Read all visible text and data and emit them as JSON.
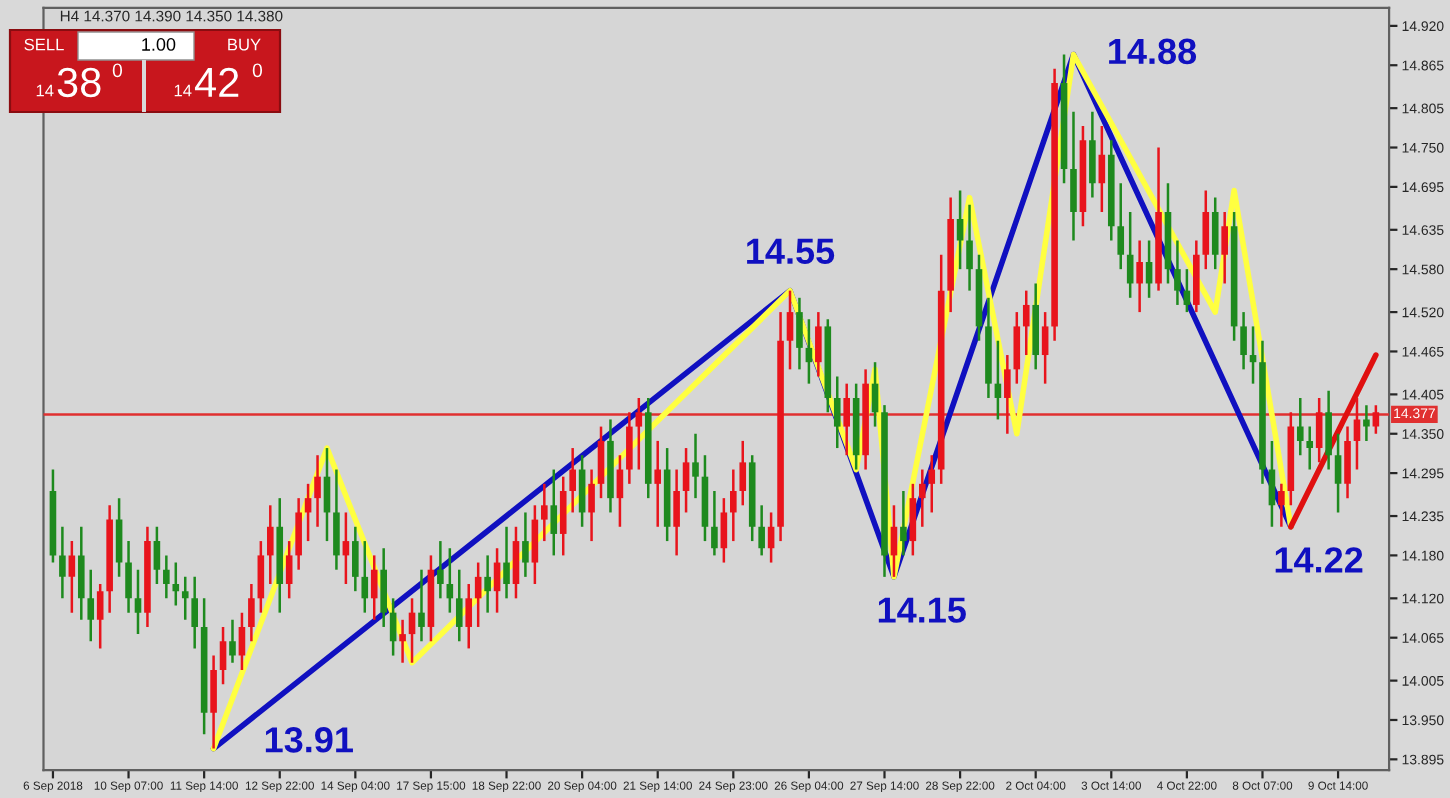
{
  "chart_data": {
    "type": "candlestick",
    "title": "H4 14.370 14.390 14.350 14.380",
    "annotations": [
      "SELL",
      "1.00",
      "BUY",
      "14",
      "38",
      "0",
      "14",
      "42",
      "0"
    ],
    "categories": [
      "6 Sep 2018",
      null,
      null,
      null,
      null,
      null,
      null,
      null,
      "10 Sep 07:00",
      null,
      null,
      null,
      null,
      null,
      null,
      null,
      "11 Sep 14:00",
      null,
      null,
      null,
      null,
      null,
      null,
      null,
      "12 Sep 22:00",
      null,
      null,
      null,
      null,
      null,
      null,
      null,
      "14 Sep 04:00",
      null,
      null,
      null,
      null,
      null,
      null,
      null,
      "17 Sep 15:00",
      null,
      null,
      null,
      null,
      null,
      null,
      null,
      "18 Sep 22:00",
      null,
      null,
      null,
      null,
      null,
      null,
      null,
      "20 Sep 04:00",
      null,
      null,
      null,
      null,
      null,
      null,
      null,
      "21 Sep 14:00",
      null,
      null,
      null,
      null,
      null,
      null,
      null,
      "24 Sep 23:00",
      null,
      null,
      null,
      null,
      null,
      null,
      null,
      "26 Sep 04:00",
      null,
      null,
      null,
      null,
      null,
      null,
      null,
      "27 Sep 14:00",
      null,
      null,
      null,
      null,
      null,
      null,
      null,
      "28 Sep 22:00",
      null,
      null,
      null,
      null,
      null,
      null,
      null,
      "2 Oct 04:00",
      null,
      null,
      null,
      null,
      null,
      null,
      null,
      "3 Oct 14:00",
      null,
      null,
      null,
      null,
      null,
      null,
      null,
      "4 Oct 22:00",
      null,
      null,
      null,
      null,
      null,
      null,
      null,
      "8 Oct 07:00",
      null,
      null,
      null,
      null,
      null,
      null,
      null,
      "9 Oct 14:00",
      null,
      null,
      null,
      null
    ],
    "ohlc": [
      [
        14.27,
        14.3,
        14.17,
        14.18
      ],
      [
        14.18,
        14.22,
        14.12,
        14.15
      ],
      [
        14.15,
        14.2,
        14.1,
        14.18
      ],
      [
        14.18,
        14.22,
        14.09,
        14.12
      ],
      [
        14.12,
        14.16,
        14.06,
        14.09
      ],
      [
        14.09,
        14.14,
        14.05,
        14.13
      ],
      [
        14.13,
        14.25,
        14.1,
        14.23
      ],
      [
        14.23,
        14.26,
        14.15,
        14.17
      ],
      [
        14.17,
        14.2,
        14.1,
        14.12
      ],
      [
        14.12,
        14.16,
        14.07,
        14.1
      ],
      [
        14.1,
        14.22,
        14.08,
        14.2
      ],
      [
        14.2,
        14.22,
        14.14,
        14.16
      ],
      [
        14.16,
        14.18,
        14.12,
        14.14
      ],
      [
        14.14,
        14.17,
        14.11,
        14.13
      ],
      [
        14.13,
        14.15,
        14.09,
        14.12
      ],
      [
        14.12,
        14.15,
        14.05,
        14.08
      ],
      [
        14.08,
        14.12,
        13.93,
        13.96
      ],
      [
        13.96,
        14.04,
        13.91,
        14.02
      ],
      [
        14.02,
        14.08,
        14.0,
        14.06
      ],
      [
        14.06,
        14.09,
        14.03,
        14.04
      ],
      [
        14.04,
        14.1,
        14.02,
        14.08
      ],
      [
        14.08,
        14.14,
        14.06,
        14.12
      ],
      [
        14.12,
        14.2,
        14.1,
        14.18
      ],
      [
        14.18,
        14.25,
        14.14,
        14.22
      ],
      [
        14.22,
        14.26,
        14.1,
        14.14
      ],
      [
        14.14,
        14.2,
        14.12,
        14.18
      ],
      [
        14.18,
        14.26,
        14.16,
        14.24
      ],
      [
        14.24,
        14.28,
        14.2,
        14.26
      ],
      [
        14.26,
        14.32,
        14.22,
        14.29
      ],
      [
        14.29,
        14.33,
        14.2,
        14.24
      ],
      [
        14.24,
        14.3,
        14.16,
        14.18
      ],
      [
        14.18,
        14.24,
        14.14,
        14.2
      ],
      [
        14.2,
        14.22,
        14.13,
        14.15
      ],
      [
        14.15,
        14.2,
        14.1,
        14.12
      ],
      [
        14.12,
        14.18,
        14.09,
        14.16
      ],
      [
        14.16,
        14.19,
        14.08,
        14.1
      ],
      [
        14.1,
        14.12,
        14.04,
        14.06
      ],
      [
        14.06,
        14.09,
        14.03,
        14.07
      ],
      [
        14.07,
        14.12,
        14.03,
        14.1
      ],
      [
        14.1,
        14.16,
        14.06,
        14.08
      ],
      [
        14.08,
        14.18,
        14.06,
        14.16
      ],
      [
        14.16,
        14.2,
        14.12,
        14.14
      ],
      [
        14.14,
        14.19,
        14.1,
        14.12
      ],
      [
        14.12,
        14.16,
        14.06,
        14.08
      ],
      [
        14.08,
        14.14,
        14.05,
        14.12
      ],
      [
        14.12,
        14.17,
        14.08,
        14.15
      ],
      [
        14.15,
        14.18,
        14.1,
        14.13
      ],
      [
        14.13,
        14.19,
        14.1,
        14.17
      ],
      [
        14.17,
        14.22,
        14.12,
        14.14
      ],
      [
        14.14,
        14.22,
        14.12,
        14.2
      ],
      [
        14.2,
        14.24,
        14.15,
        14.17
      ],
      [
        14.17,
        14.25,
        14.14,
        14.23
      ],
      [
        14.23,
        14.28,
        14.2,
        14.25
      ],
      [
        14.25,
        14.3,
        14.18,
        14.21
      ],
      [
        14.21,
        14.29,
        14.18,
        14.27
      ],
      [
        14.27,
        14.33,
        14.24,
        14.3
      ],
      [
        14.3,
        14.32,
        14.22,
        14.24
      ],
      [
        14.24,
        14.3,
        14.2,
        14.28
      ],
      [
        14.28,
        14.36,
        14.26,
        14.34
      ],
      [
        14.34,
        14.37,
        14.24,
        14.26
      ],
      [
        14.26,
        14.32,
        14.22,
        14.3
      ],
      [
        14.3,
        14.38,
        14.28,
        14.36
      ],
      [
        14.36,
        14.4,
        14.3,
        14.38
      ],
      [
        14.38,
        14.4,
        14.26,
        14.28
      ],
      [
        14.28,
        14.34,
        14.22,
        14.3
      ],
      [
        14.3,
        14.33,
        14.2,
        14.22
      ],
      [
        14.22,
        14.3,
        14.18,
        14.27
      ],
      [
        14.27,
        14.33,
        14.24,
        14.31
      ],
      [
        14.31,
        14.35,
        14.26,
        14.29
      ],
      [
        14.29,
        14.32,
        14.2,
        14.22
      ],
      [
        14.22,
        14.27,
        14.18,
        14.19
      ],
      [
        14.19,
        14.26,
        14.17,
        14.24
      ],
      [
        14.24,
        14.3,
        14.2,
        14.27
      ],
      [
        14.27,
        14.34,
        14.25,
        14.31
      ],
      [
        14.31,
        14.32,
        14.2,
        14.22
      ],
      [
        14.22,
        14.25,
        14.18,
        14.19
      ],
      [
        14.19,
        14.24,
        14.17,
        14.22
      ],
      [
        14.22,
        14.52,
        14.2,
        14.48
      ],
      [
        14.48,
        14.55,
        14.44,
        14.52
      ],
      [
        14.52,
        14.54,
        14.44,
        14.47
      ],
      [
        14.47,
        14.51,
        14.42,
        14.45
      ],
      [
        14.45,
        14.52,
        14.43,
        14.5
      ],
      [
        14.5,
        14.51,
        14.38,
        14.4
      ],
      [
        14.4,
        14.43,
        14.33,
        14.36
      ],
      [
        14.36,
        14.42,
        14.32,
        14.4
      ],
      [
        14.4,
        14.42,
        14.3,
        14.32
      ],
      [
        14.32,
        14.44,
        14.3,
        14.42
      ],
      [
        14.42,
        14.45,
        14.36,
        14.38
      ],
      [
        14.38,
        14.39,
        14.15,
        14.18
      ],
      [
        14.18,
        14.25,
        14.15,
        14.22
      ],
      [
        14.22,
        14.27,
        14.18,
        14.2
      ],
      [
        14.2,
        14.28,
        14.18,
        14.26
      ],
      [
        14.26,
        14.3,
        14.22,
        14.28
      ],
      [
        14.28,
        14.32,
        14.24,
        14.3
      ],
      [
        14.3,
        14.6,
        14.28,
        14.55
      ],
      [
        14.55,
        14.68,
        14.52,
        14.65
      ],
      [
        14.65,
        14.69,
        14.58,
        14.62
      ],
      [
        14.62,
        14.67,
        14.55,
        14.58
      ],
      [
        14.58,
        14.6,
        14.48,
        14.5
      ],
      [
        14.5,
        14.54,
        14.4,
        14.42
      ],
      [
        14.42,
        14.48,
        14.37,
        14.4
      ],
      [
        14.4,
        14.46,
        14.35,
        14.44
      ],
      [
        14.44,
        14.52,
        14.42,
        14.5
      ],
      [
        14.5,
        14.55,
        14.46,
        14.53
      ],
      [
        14.53,
        14.56,
        14.44,
        14.46
      ],
      [
        14.46,
        14.52,
        14.42,
        14.5
      ],
      [
        14.5,
        14.86,
        14.48,
        14.84
      ],
      [
        14.84,
        14.88,
        14.7,
        14.72
      ],
      [
        14.72,
        14.8,
        14.62,
        14.66
      ],
      [
        14.66,
        14.78,
        14.64,
        14.76
      ],
      [
        14.76,
        14.8,
        14.68,
        14.7
      ],
      [
        14.7,
        14.78,
        14.66,
        14.74
      ],
      [
        14.74,
        14.76,
        14.62,
        14.64
      ],
      [
        14.64,
        14.7,
        14.58,
        14.6
      ],
      [
        14.6,
        14.66,
        14.54,
        14.56
      ],
      [
        14.56,
        14.62,
        14.52,
        14.59
      ],
      [
        14.59,
        14.62,
        14.54,
        14.56
      ],
      [
        14.56,
        14.75,
        14.55,
        14.66
      ],
      [
        14.66,
        14.7,
        14.56,
        14.58
      ],
      [
        14.58,
        14.62,
        14.53,
        14.55
      ],
      [
        14.55,
        14.58,
        14.52,
        14.53
      ],
      [
        14.53,
        14.62,
        14.52,
        14.6
      ],
      [
        14.6,
        14.69,
        14.58,
        14.66
      ],
      [
        14.66,
        14.68,
        14.58,
        14.6
      ],
      [
        14.6,
        14.66,
        14.56,
        14.64
      ],
      [
        14.64,
        14.66,
        14.48,
        14.5
      ],
      [
        14.5,
        14.52,
        14.44,
        14.46
      ],
      [
        14.46,
        14.5,
        14.42,
        14.45
      ],
      [
        14.45,
        14.48,
        14.28,
        14.3
      ],
      [
        14.3,
        14.34,
        14.22,
        14.25
      ],
      [
        14.25,
        14.28,
        14.22,
        14.27
      ],
      [
        14.27,
        14.38,
        14.25,
        14.36
      ],
      [
        14.36,
        14.4,
        14.32,
        14.34
      ],
      [
        14.34,
        14.36,
        14.3,
        14.33
      ],
      [
        14.33,
        14.4,
        14.31,
        14.38
      ],
      [
        14.38,
        14.41,
        14.3,
        14.32
      ],
      [
        14.32,
        14.35,
        14.24,
        14.28
      ],
      [
        14.28,
        14.36,
        14.26,
        14.34
      ],
      [
        14.34,
        14.4,
        14.3,
        14.37
      ],
      [
        14.37,
        14.39,
        14.34,
        14.36
      ],
      [
        14.36,
        14.39,
        14.35,
        14.38
      ]
    ],
    "series": [
      {
        "type": "line",
        "color": "#1010c0",
        "values": [
          null,
          null,
          null,
          null,
          null,
          null,
          null,
          null,
          null,
          null,
          null,
          null,
          null,
          null,
          null,
          null,
          null,
          13.91,
          null,
          null,
          null,
          null,
          null,
          null,
          null,
          null,
          null,
          null,
          null,
          null,
          null,
          null,
          null,
          null,
          null,
          null,
          null,
          null,
          null,
          null,
          null,
          null,
          null,
          null,
          null,
          null,
          null,
          null,
          null,
          null,
          null,
          null,
          null,
          null,
          null,
          null,
          null,
          null,
          null,
          null,
          null,
          null,
          null,
          null,
          null,
          null,
          null,
          null,
          null,
          null,
          null,
          null,
          null,
          null,
          null,
          null,
          null,
          null,
          14.55,
          null,
          null,
          null,
          null,
          null,
          null,
          null,
          null,
          null,
          null,
          14.15,
          null,
          null,
          null,
          null,
          null,
          null,
          null,
          null,
          null,
          null,
          null,
          null,
          null,
          null,
          null,
          null,
          null,
          null,
          14.88,
          null,
          null,
          null,
          null,
          null,
          null,
          null,
          null,
          null,
          null,
          null,
          null,
          null,
          null,
          null,
          null,
          null,
          null,
          null,
          null,
          null,
          null,
          14.22,
          null,
          null,
          null,
          null,
          null,
          null,
          null,
          null,
          null
        ],
        "value_labels": [
          null,
          null,
          null,
          null,
          null,
          null,
          null,
          null,
          null,
          null,
          null,
          null,
          null,
          null,
          null,
          null,
          null,
          "13.91",
          null,
          null,
          null,
          null,
          null,
          null,
          null,
          null,
          null,
          null,
          null,
          null,
          null,
          null,
          null,
          null,
          null,
          null,
          null,
          null,
          null,
          null,
          null,
          null,
          null,
          null,
          null,
          null,
          null,
          null,
          null,
          null,
          null,
          null,
          null,
          null,
          null,
          null,
          null,
          null,
          null,
          null,
          null,
          null,
          null,
          null,
          null,
          null,
          null,
          null,
          null,
          null,
          null,
          null,
          null,
          null,
          null,
          null,
          null,
          null,
          "14.55",
          null,
          null,
          null,
          null,
          null,
          null,
          null,
          null,
          null,
          null,
          "14.15",
          null,
          null,
          null,
          null,
          null,
          null,
          null,
          null,
          null,
          null,
          null,
          null,
          null,
          null,
          null,
          null,
          null,
          null,
          "14.88",
          null,
          null,
          null,
          null,
          null,
          null,
          null,
          null,
          null,
          null,
          null,
          null,
          null,
          null,
          null,
          null,
          null,
          null,
          null,
          null,
          null,
          null,
          "14.22",
          null,
          null,
          null,
          null,
          null,
          null,
          null,
          null,
          null
        ]
      },
      {
        "type": "line",
        "color": "#ffff40",
        "values": [
          null,
          null,
          null,
          null,
          null,
          null,
          null,
          null,
          null,
          null,
          null,
          null,
          null,
          null,
          null,
          null,
          null,
          13.91,
          null,
          null,
          null,
          null,
          null,
          null,
          null,
          null,
          null,
          null,
          null,
          14.33,
          null,
          null,
          null,
          null,
          null,
          null,
          null,
          null,
          14.03,
          null,
          null,
          null,
          null,
          null,
          null,
          null,
          null,
          null,
          null,
          null,
          null,
          null,
          null,
          null,
          null,
          null,
          null,
          null,
          null,
          null,
          null,
          null,
          null,
          null,
          null,
          null,
          null,
          null,
          null,
          null,
          null,
          null,
          null,
          null,
          null,
          null,
          null,
          null,
          14.55,
          null,
          null,
          null,
          null,
          null,
          null,
          14.3,
          null,
          14.44,
          null,
          14.15,
          null,
          null,
          null,
          null,
          null,
          null,
          null,
          14.68,
          null,
          null,
          null,
          null,
          14.35,
          null,
          null,
          null,
          null,
          null,
          14.88,
          null,
          null,
          null,
          null,
          null,
          null,
          null,
          null,
          null,
          null,
          null,
          null,
          null,
          null,
          14.52,
          null,
          14.69,
          null,
          null,
          null,
          null,
          null,
          14.22,
          null,
          null,
          null,
          null,
          null,
          null,
          null,
          null,
          null
        ]
      },
      {
        "type": "line",
        "color": "#e01010",
        "values": [
          null,
          null,
          null,
          null,
          null,
          null,
          null,
          null,
          null,
          null,
          null,
          null,
          null,
          null,
          null,
          null,
          null,
          null,
          null,
          null,
          null,
          null,
          null,
          null,
          null,
          null,
          null,
          null,
          null,
          null,
          null,
          null,
          null,
          null,
          null,
          null,
          null,
          null,
          null,
          null,
          null,
          null,
          null,
          null,
          null,
          null,
          null,
          null,
          null,
          null,
          null,
          null,
          null,
          null,
          null,
          null,
          null,
          null,
          null,
          null,
          null,
          null,
          null,
          null,
          null,
          null,
          null,
          null,
          null,
          null,
          null,
          null,
          null,
          null,
          null,
          null,
          null,
          null,
          null,
          null,
          null,
          null,
          null,
          null,
          null,
          null,
          null,
          null,
          null,
          null,
          null,
          null,
          null,
          null,
          null,
          null,
          null,
          null,
          null,
          null,
          null,
          null,
          null,
          null,
          null,
          null,
          null,
          null,
          null,
          null,
          null,
          null,
          null,
          null,
          null,
          null,
          null,
          null,
          null,
          null,
          null,
          null,
          null,
          null,
          null,
          null,
          null,
          null,
          null,
          null,
          null,
          14.22,
          null,
          null,
          null,
          null,
          null,
          null,
          null,
          null,
          14.46
        ]
      }
    ],
    "ref_lines": [
      {
        "axis": "y",
        "value": 14.377,
        "label": "14.377",
        "color": "#e03030"
      }
    ],
    "ylim": [
      13.88,
      14.945
    ],
    "yticks": [
      {
        "value": 14.92,
        "label": "14.920"
      },
      {
        "value": 14.865,
        "label": "14.865"
      },
      {
        "value": 14.805,
        "label": "14.805"
      },
      {
        "value": 14.75,
        "label": "14.750"
      },
      {
        "value": 14.695,
        "label": "14.695"
      },
      {
        "value": 14.635,
        "label": "14.635"
      },
      {
        "value": 14.58,
        "label": "14.580"
      },
      {
        "value": 14.52,
        "label": "14.520"
      },
      {
        "value": 14.465,
        "label": "14.465"
      },
      {
        "value": 14.405,
        "label": "14.405"
      },
      {
        "value": 14.35,
        "label": "14.350"
      },
      {
        "value": 14.295,
        "label": "14.295"
      },
      {
        "value": 14.235,
        "label": "14.235"
      },
      {
        "value": 14.18,
        "label": "14.180"
      },
      {
        "value": 14.12,
        "label": "14.120"
      },
      {
        "value": 14.065,
        "label": "14.065"
      },
      {
        "value": 14.005,
        "label": "14.005"
      },
      {
        "value": 13.95,
        "label": "13.950"
      },
      {
        "value": 13.895,
        "label": "13.895"
      }
    ],
    "grid": false,
    "marker": "none"
  }
}
